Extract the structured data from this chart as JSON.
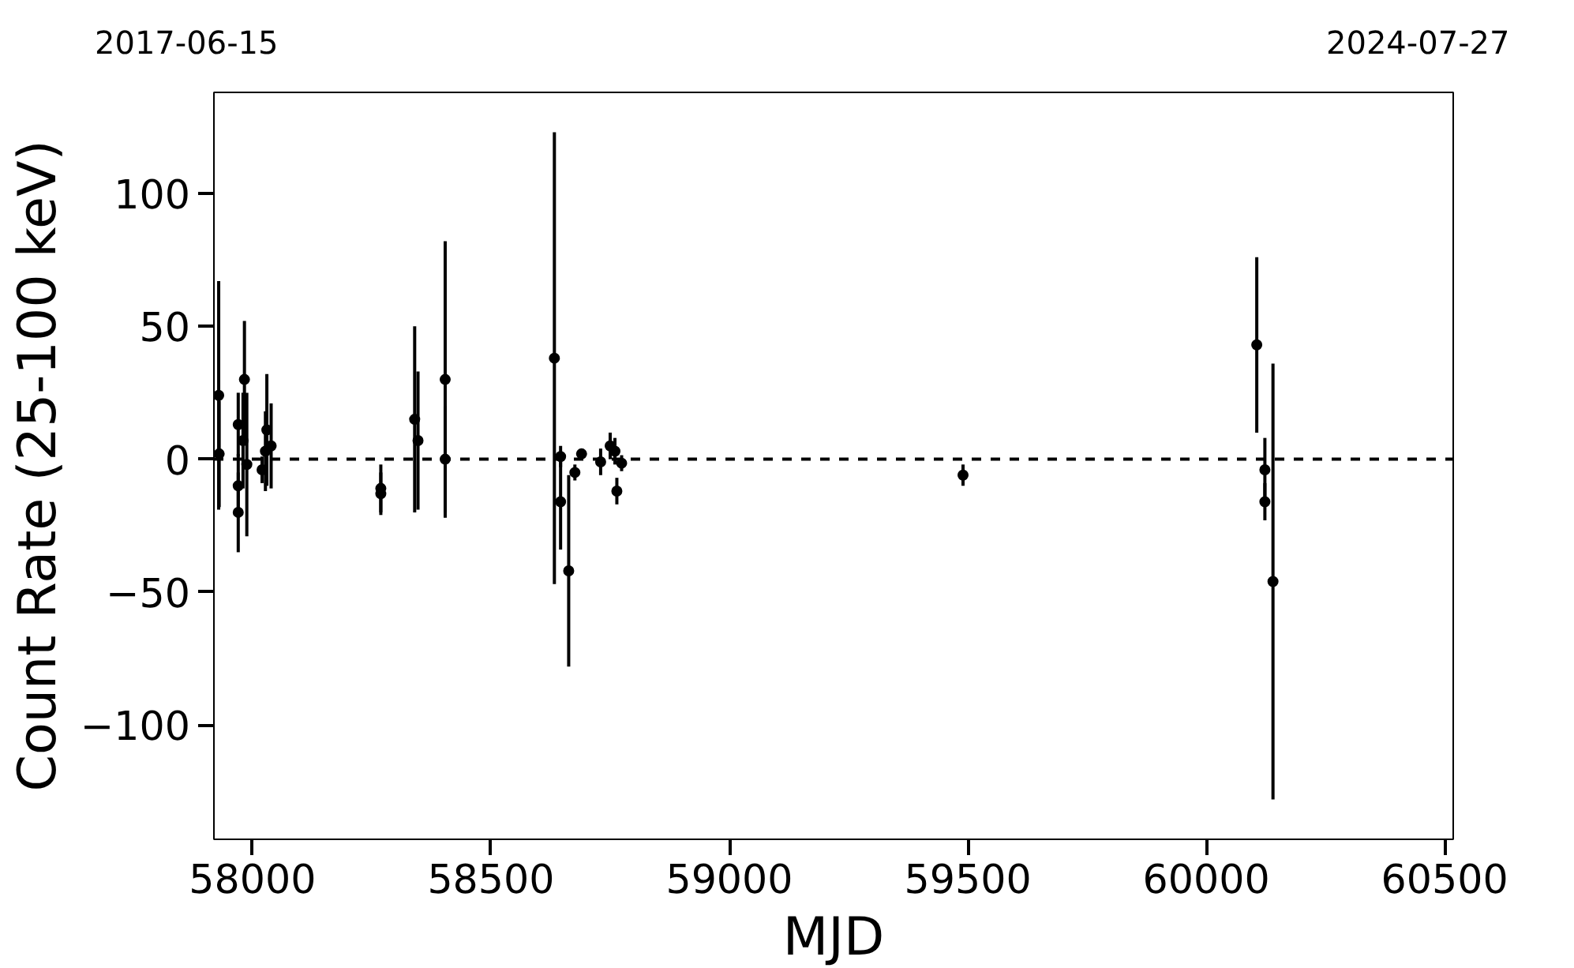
{
  "chart_data": {
    "type": "scatter",
    "xlabel": "MJD",
    "ylabel": "Count Rate (25-100 keV)",
    "x": [
      57929,
      57930,
      57970,
      57970,
      57970,
      57983,
      57980,
      57988,
      58020,
      58030,
      58027,
      58039,
      58269,
      58269,
      58340,
      58347,
      58404,
      58404,
      58633,
      58646,
      58646,
      58663,
      58676,
      58690,
      58730,
      58750,
      58760,
      58764,
      58774,
      59490,
      60106,
      60123,
      60123,
      60140
    ],
    "series": [
      {
        "color": "#000000",
        "values": [
          24,
          2,
          13,
          -10,
          -20,
          30,
          7,
          -2,
          -4,
          11,
          3,
          5,
          -11,
          -13,
          15,
          7,
          30,
          0,
          38,
          1,
          -16,
          -42,
          -5,
          2,
          -1,
          5,
          3,
          -12,
          -1.5,
          -6,
          43,
          -4,
          -16,
          -46
        ],
        "errors": [
          43,
          20,
          12,
          12,
          15,
          22,
          18,
          27,
          5,
          21,
          15,
          16,
          9,
          8,
          35,
          26,
          52,
          20,
          85,
          4,
          18,
          36,
          3,
          1,
          5,
          5,
          5,
          5,
          3,
          4,
          33,
          12,
          7,
          82
        ]
      }
    ],
    "xlim": [
      57919,
      60518
    ],
    "xticks": [
      58000,
      58500,
      59000,
      59500,
      60000,
      60500
    ],
    "ylim": [
      -143,
      138
    ],
    "yticks": [
      -100,
      -50,
      0,
      50,
      100
    ],
    "annotations": [
      "2017-06-15",
      "2024-07-27"
    ],
    "ref_lines": [
      {
        "axis": "y",
        "value": 0,
        "color": "#000000",
        "line_style": "dashed"
      }
    ],
    "marker": "circle",
    "grid": false
  }
}
